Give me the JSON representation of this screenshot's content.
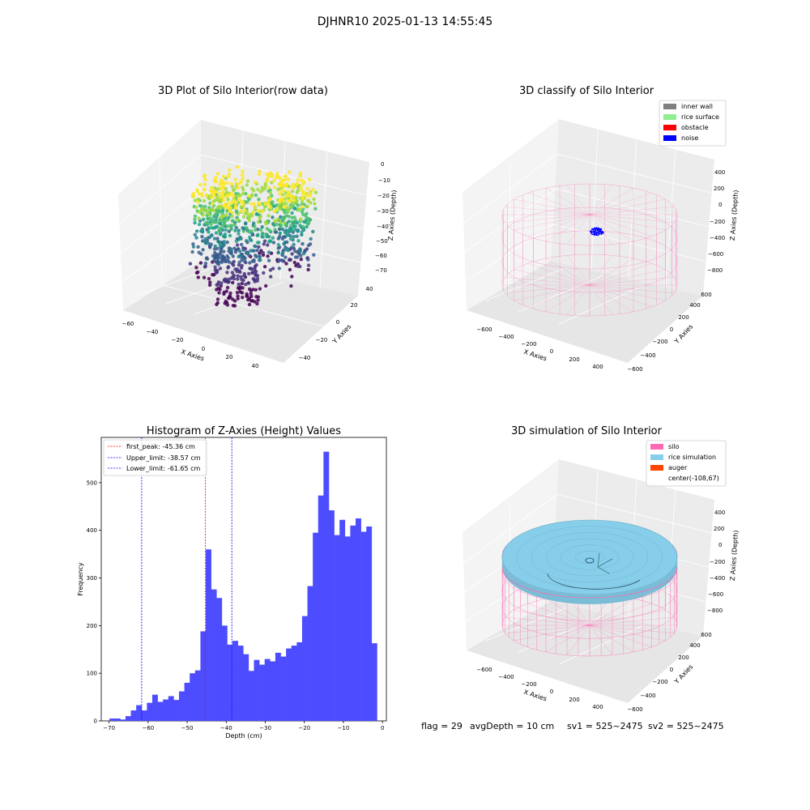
{
  "figure": {
    "suptitle": "DJHNR10 2025-01-13 14:55:45",
    "footer": {
      "flag": "flag = 29",
      "avg_depth": "avgDepth = 10 cm",
      "sv1": "sv1 = 525~2475",
      "sv2": "sv2 = 525~2475"
    }
  },
  "colors": {
    "inner_wall": "#808080",
    "rice_surface": "#90ee90",
    "obstacle": "#ff0000",
    "noise": "#0000ff",
    "silo": "#ff69b4",
    "rice_simulation": "#87ceeb",
    "auger": "#ff4500",
    "hist_bar": "#4d4dff"
  },
  "panels": {
    "raw": {
      "title": "3D Plot of Silo Interior(row data)",
      "xlabel": "X Axies",
      "ylabel": "Y Axies",
      "zlabel": "Z Axies (Depth)",
      "xticks": [
        "−60",
        "−40",
        "−20",
        "0",
        "20",
        "40"
      ],
      "yticks": [
        "−40",
        "−20",
        "0",
        "20",
        "40"
      ],
      "zticks": [
        "0",
        "−10",
        "−20",
        "−30",
        "−40",
        "−50",
        "−60",
        "−70"
      ]
    },
    "classify": {
      "title": "3D classify of Silo Interior",
      "xlabel": "X Axies",
      "ylabel": "Y Axies",
      "zlabel": "Z Axies (Depth)",
      "xticks": [
        "−600",
        "−400",
        "−200",
        "0",
        "200",
        "400"
      ],
      "yticks": [
        "−600",
        "−400",
        "−200",
        "0",
        "200",
        "400",
        "600"
      ],
      "zticks": [
        "400",
        "200",
        "0",
        "−200",
        "−400",
        "−600",
        "−800"
      ],
      "legend": [
        "inner wall",
        "rice surface",
        "obstacle",
        "noise"
      ]
    },
    "simulation": {
      "title": "3D simulation of Silo Interior",
      "xlabel": "X Axies",
      "ylabel": "Y Axies",
      "zlabel": "Z Axies (Depth)",
      "xticks": [
        "−600",
        "−400",
        "−200",
        "0",
        "200",
        "400"
      ],
      "yticks": [
        "−600",
        "−400",
        "−200",
        "0",
        "200",
        "400",
        "600"
      ],
      "zticks": [
        "400",
        "200",
        "0",
        "−200",
        "−400",
        "−600",
        "−800"
      ],
      "legend": [
        "silo",
        "rice simulation",
        "auger",
        "center(-108,67)"
      ]
    }
  },
  "chart_data": {
    "type": "bar",
    "title": "Histogram of Z-Axies (Height) Values",
    "xlabel": "Depth (cm)",
    "ylabel": "Frequency",
    "xlim": [
      -72,
      1
    ],
    "ylim": [
      0,
      595
    ],
    "xticks": [
      -70,
      -60,
      -50,
      -40,
      -30,
      -20,
      -10,
      0
    ],
    "yticks": [
      0,
      100,
      200,
      300,
      400,
      500
    ],
    "bin_start": -69.9,
    "bin_width": 1.37,
    "values": [
      5,
      5,
      3,
      10,
      22,
      33,
      22,
      38,
      55,
      40,
      45,
      52,
      44,
      62,
      80,
      100,
      106,
      188,
      360,
      276,
      258,
      200,
      160,
      168,
      158,
      140,
      105,
      128,
      118,
      130,
      125,
      143,
      135,
      152,
      158,
      165,
      220,
      283,
      395,
      473,
      565,
      442,
      390,
      422,
      387,
      410,
      425,
      397,
      408,
      163
    ],
    "vlines": [
      {
        "label": "first_peak: -45.36 cm",
        "x": -45.36,
        "color": "#ff0000"
      },
      {
        "label": "Upper_limit: -38.57 cm",
        "x": -38.57,
        "color": "#0000ff"
      },
      {
        "label": "Lower_limit: -61.65 cm",
        "x": -61.65,
        "color": "#0000ff"
      }
    ],
    "legend_position": "upper left"
  }
}
